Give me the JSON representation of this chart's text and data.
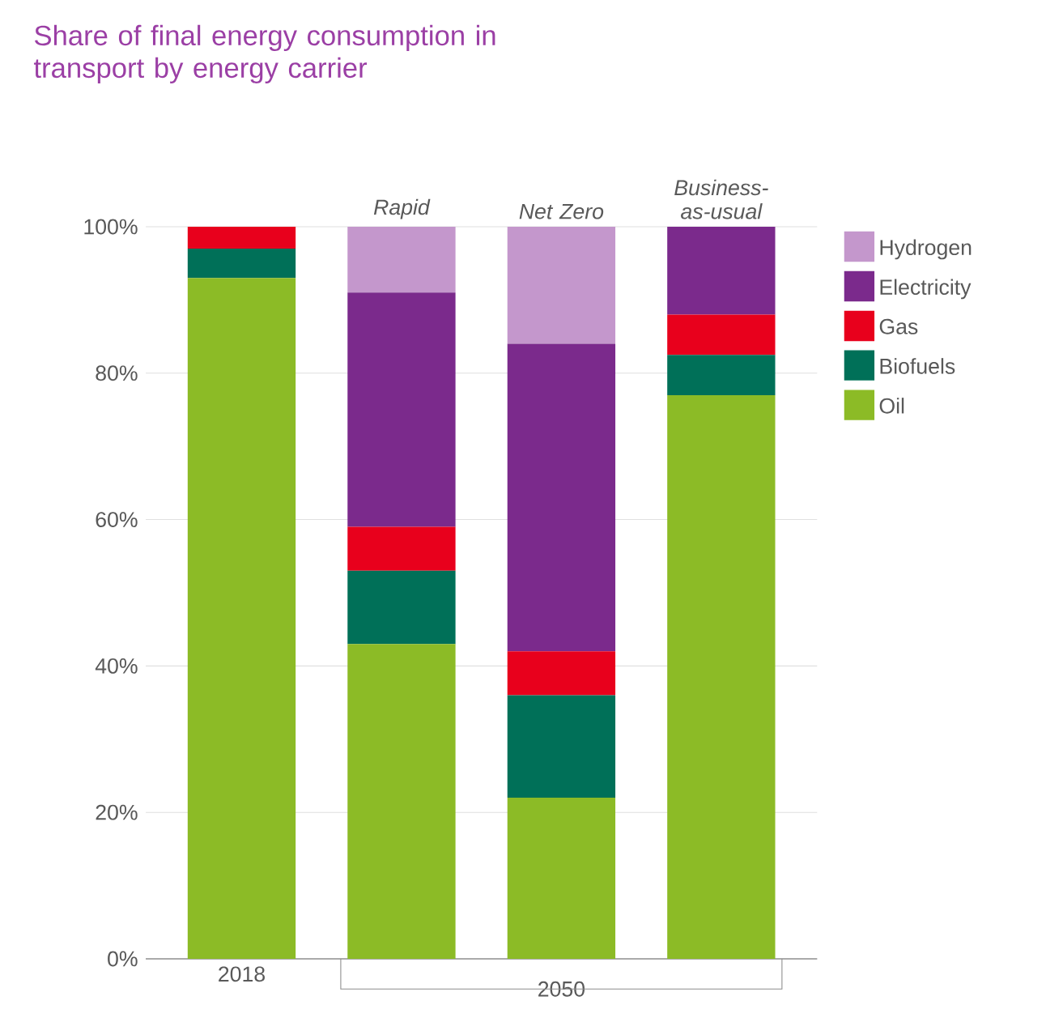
{
  "chart_data": {
    "type": "bar",
    "stacked": true,
    "title": "Share of final energy consumption in transport by energy carrier",
    "categories": [
      "2018",
      "Rapid",
      "Net Zero",
      "Business-as-usual"
    ],
    "series": [
      {
        "name": "Oil",
        "color": "#8cbb26",
        "values": [
          93,
          43,
          22,
          77
        ]
      },
      {
        "name": "Biofuels",
        "color": "#007058",
        "values": [
          4,
          10,
          14,
          5.5
        ]
      },
      {
        "name": "Gas",
        "color": "#e8001c",
        "values": [
          3,
          6,
          6,
          5.5
        ]
      },
      {
        "name": "Electricity",
        "color": "#7b2a8c",
        "values": [
          0,
          32,
          42,
          12
        ]
      },
      {
        "name": "Hydrogen",
        "color": "#c497cc",
        "values": [
          0,
          9,
          16,
          0
        ]
      }
    ],
    "ylim": [
      0,
      100
    ],
    "yticks": [
      {
        "value": 0,
        "label": "0%"
      },
      {
        "value": 20,
        "label": "20%"
      },
      {
        "value": 40,
        "label": "40%"
      },
      {
        "value": 60,
        "label": "60%"
      },
      {
        "value": 80,
        "label": "80%"
      },
      {
        "value": 100,
        "label": "100%"
      }
    ],
    "grid": "y",
    "legend": "right",
    "annotations": [
      "2050"
    ]
  }
}
